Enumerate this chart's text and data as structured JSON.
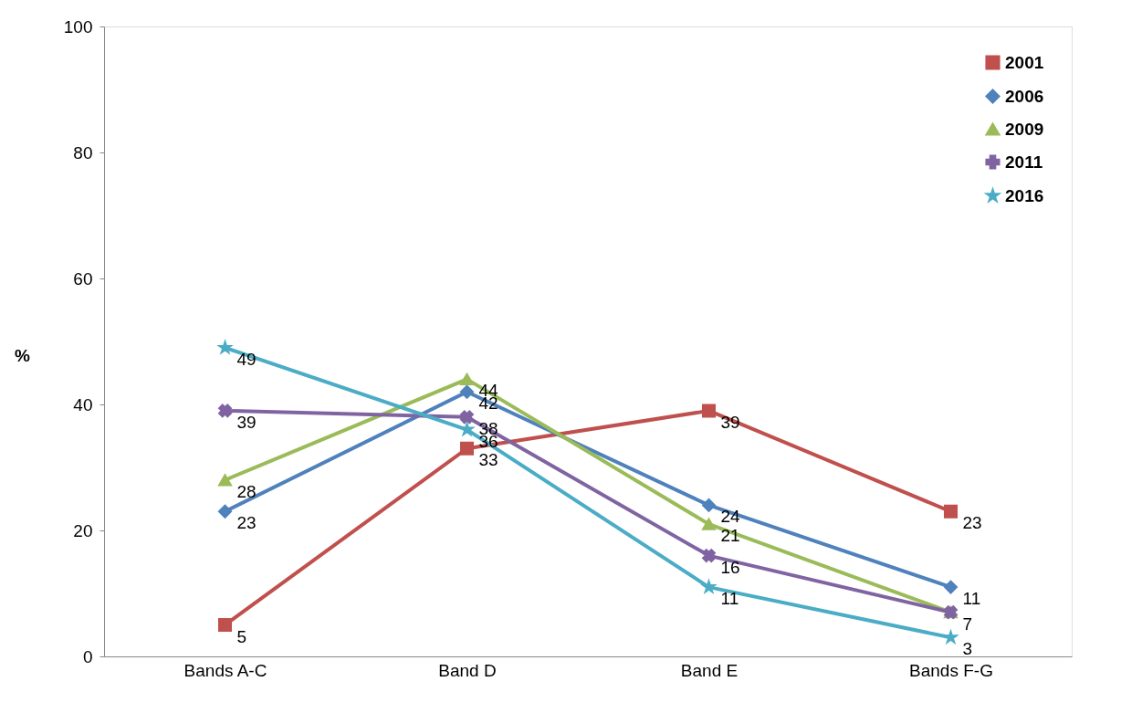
{
  "chart_data": {
    "type": "line",
    "ylabel": "%",
    "categories": [
      "Bands A-C",
      "Band D",
      "Band E",
      "Bands F-G"
    ],
    "ylim": [
      0,
      100
    ],
    "yticks": [
      0,
      20,
      40,
      60,
      80,
      100
    ],
    "grid": false,
    "legend": "top right",
    "series": [
      {
        "name": "2001",
        "color": "#c0504d",
        "marker": "square",
        "values": [
          5,
          33,
          39,
          23
        ],
        "value_labels": [
          "5",
          "33",
          "39",
          "23"
        ]
      },
      {
        "name": "2006",
        "color": "#4f81bd",
        "marker": "diamond",
        "values": [
          23,
          42,
          24,
          11
        ],
        "value_labels": [
          "23",
          "42",
          "24",
          "11"
        ]
      },
      {
        "name": "2009",
        "color": "#9bbb59",
        "marker": "triangle",
        "values": [
          28,
          44,
          21,
          7
        ],
        "value_labels": [
          "28",
          "44",
          "21",
          "7"
        ]
      },
      {
        "name": "2011",
        "color": "#8064a2",
        "marker": "cross",
        "values": [
          39,
          38,
          16,
          7
        ],
        "value_labels": [
          "39",
          "38",
          "16",
          null
        ]
      },
      {
        "name": "2016",
        "color": "#4bacc6",
        "marker": "star",
        "values": [
          49,
          36,
          11,
          3
        ],
        "value_labels": [
          "49",
          "36",
          "11",
          "3"
        ]
      }
    ]
  }
}
